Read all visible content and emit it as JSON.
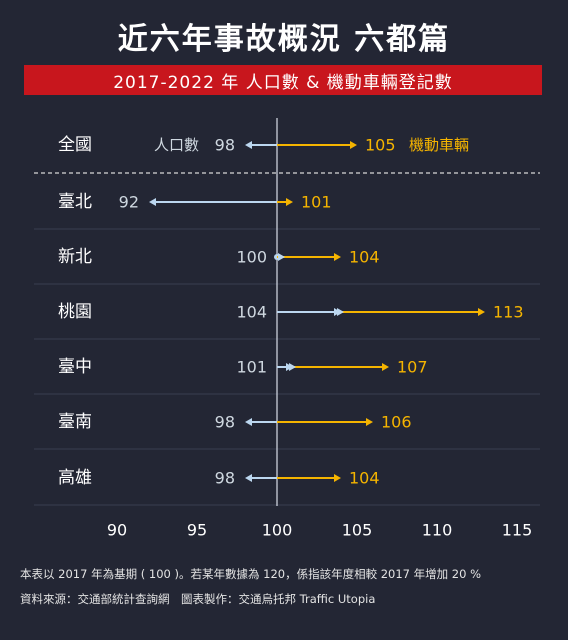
{
  "title": "近六年事故概況 六都篇",
  "subtitle": "2017-2022 年 人口數 & 機動車輛登記數",
  "footnote": "本表以 2017 年為基期 ( 100 )。若某年數據為 120，係指該年度相較 2017 年增加 20 %",
  "source": "資料來源：交通部統計查詢網　圖表製作：交通烏托邦 Traffic Utopia",
  "colors": {
    "background": "#232634",
    "banner": "#c8161d",
    "population": "#bcd7f0",
    "vehicles": "#f5b400",
    "label_population": "#cfd8e0",
    "label_vehicles": "#f5b400"
  },
  "chart_data": {
    "type": "arrow-dot",
    "baseline": 100,
    "xlim": [
      90,
      115
    ],
    "xticks": [
      90,
      95,
      100,
      105,
      110,
      115
    ],
    "categories": [
      "全國",
      "臺北",
      "新北",
      "桃園",
      "臺中",
      "臺南",
      "高雄"
    ],
    "series": [
      {
        "name": "人口數",
        "values": [
          98,
          92,
          100,
          104,
          101,
          98,
          98
        ]
      },
      {
        "name": "機動車輛",
        "values": [
          105,
          101,
          104,
          113,
          107,
          106,
          104
        ]
      }
    ],
    "legend_inline_row": 0
  }
}
